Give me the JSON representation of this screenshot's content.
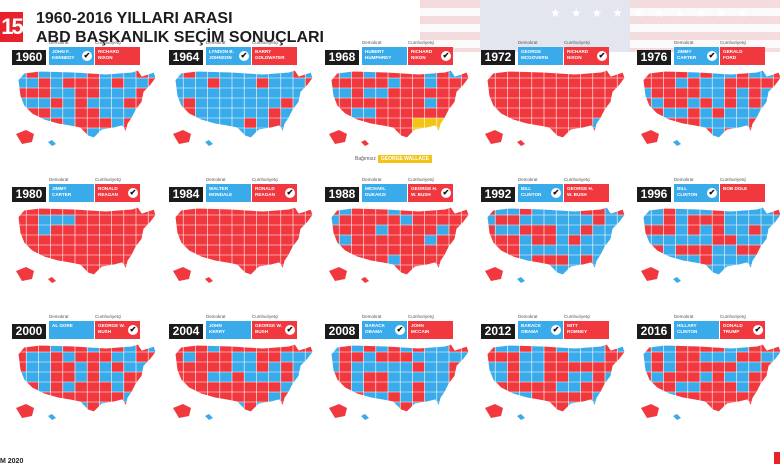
{
  "header": {
    "logo": "15",
    "title_line1": "1960-2016 YILLARI ARASI",
    "title_line2": "ABD BAŞKANLIK SEÇİM SONUÇLARI"
  },
  "labels": {
    "democrat": "Demokrat",
    "republican": "Cumhuriyetçi",
    "independent": "Bağımsız"
  },
  "colors": {
    "democrat": "#3aabea",
    "republican": "#f1383f",
    "independent": "#f3c316",
    "year_box": "#1b1b1b"
  },
  "elections": [
    {
      "year": "1960",
      "dem": "JOHN F. KENNEDY",
      "rep": "RICHARD NIXON",
      "winner": "dem",
      "map": {
        "blue_share": 0.55,
        "yellow_share": 0
      }
    },
    {
      "year": "1964",
      "dem": "LYNDON B. JOHNSON",
      "rep": "BARRY GOLDWATER",
      "winner": "dem",
      "map": {
        "blue_share": 0.9,
        "yellow_share": 0
      }
    },
    {
      "year": "1968",
      "dem": "HUBERT HUMPHREY",
      "rep": "RICHARD NIXON",
      "winner": "rep",
      "independent": "GEORGE WALLACE",
      "map": {
        "blue_share": 0.2,
        "yellow_share": 0.12
      }
    },
    {
      "year": "1972",
      "dem": "GEORGE MCGOVERN",
      "rep": "RICHARD NIXON",
      "winner": "rep",
      "map": {
        "blue_share": 0.02,
        "yellow_share": 0
      }
    },
    {
      "year": "1976",
      "dem": "JIMMY CARTER",
      "rep": "GERALD FORD",
      "winner": "dem",
      "map": {
        "blue_share": 0.45,
        "yellow_share": 0
      }
    },
    {
      "year": "1980",
      "dem": "JIMMY CARTER",
      "rep": "RONALD REAGAN",
      "winner": "rep",
      "map": {
        "blue_share": 0.08,
        "yellow_share": 0
      }
    },
    {
      "year": "1984",
      "dem": "WALTER MONDALE",
      "rep": "RONALD REAGAN",
      "winner": "rep",
      "map": {
        "blue_share": 0.02,
        "yellow_share": 0
      }
    },
    {
      "year": "1988",
      "dem": "MICHAEL DUKAKIS",
      "rep": "GEORGE H. W. BUSH",
      "winner": "rep",
      "map": {
        "blue_share": 0.18,
        "yellow_share": 0
      }
    },
    {
      "year": "1992",
      "dem": "BILL CLINTON",
      "rep": "GEORGE H. W. BUSH",
      "winner": "dem",
      "map": {
        "blue_share": 0.62,
        "yellow_share": 0
      }
    },
    {
      "year": "1996",
      "dem": "BILL CLINTON",
      "rep": "BOB DOLE",
      "winner": "dem",
      "map": {
        "blue_share": 0.62,
        "yellow_share": 0
      }
    },
    {
      "year": "2000",
      "dem": "AL GORE",
      "rep": "GEORGE W. BUSH",
      "winner": "rep",
      "map": {
        "blue_share": 0.4,
        "yellow_share": 0
      }
    },
    {
      "year": "2004",
      "dem": "JOHN KERRY",
      "rep": "GEORGE W. BUSH",
      "winner": "rep",
      "map": {
        "blue_share": 0.38,
        "yellow_share": 0
      }
    },
    {
      "year": "2008",
      "dem": "BARACK OBAMA",
      "rep": "JOHN MCCAIN",
      "winner": "dem",
      "map": {
        "blue_share": 0.55,
        "yellow_share": 0
      }
    },
    {
      "year": "2012",
      "dem": "BARACK OBAMA",
      "rep": "MITT ROMNEY",
      "winner": "dem",
      "map": {
        "blue_share": 0.5,
        "yellow_share": 0
      }
    },
    {
      "year": "2016",
      "dem": "HILLARY CLINTON",
      "rep": "DONALD TRUMP",
      "winner": "rep",
      "map": {
        "blue_share": 0.4,
        "yellow_share": 0
      }
    }
  ],
  "footer": {
    "text": "M 2020"
  }
}
